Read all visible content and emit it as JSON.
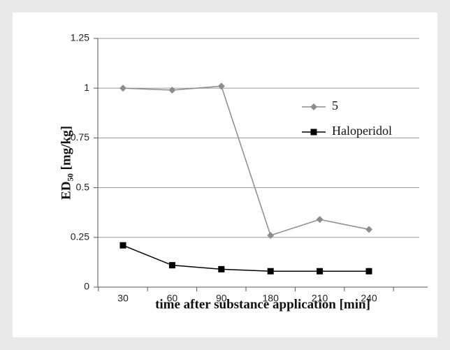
{
  "chart_data": {
    "type": "line",
    "xlabel": "time after substance application [min]",
    "ylabel": "ED₅₀ [mg/kg]",
    "categories": [
      "30",
      "60",
      "90",
      "180",
      "210",
      "240"
    ],
    "series": [
      {
        "name": "5",
        "color": "#8c8c8c",
        "marker": "diamond",
        "values": [
          1.0,
          0.99,
          1.01,
          0.26,
          0.34,
          0.29
        ]
      },
      {
        "name": "Haloperidol",
        "color": "#000000",
        "marker": "square",
        "values": [
          0.21,
          0.11,
          0.09,
          0.08,
          0.08,
          0.08
        ]
      }
    ],
    "ylim": [
      0,
      1.25
    ],
    "yticks": [
      0,
      0.25,
      0.5,
      0.75,
      1,
      1.25
    ],
    "grid": true,
    "legend": "upper right"
  }
}
